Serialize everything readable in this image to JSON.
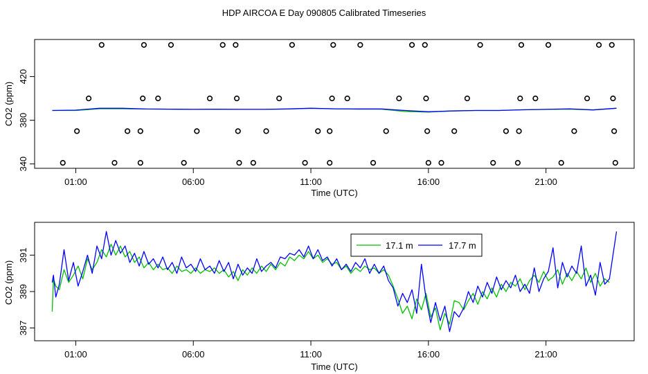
{
  "title": "HDP AIRCOA E  Day 090805  Calibrated Timeseries",
  "chart_data": [
    {
      "type": "scatter+line",
      "title": "",
      "xlabel": "Time (UTC)",
      "ylabel": "CO2 (ppm)",
      "xlim": [
        -0.75,
        24.75
      ],
      "ylim": [
        336,
        454
      ],
      "x_ticks": [
        {
          "v": 1,
          "label": "01:00"
        },
        {
          "v": 6,
          "label": "06:00"
        },
        {
          "v": 11,
          "label": "11:00"
        },
        {
          "v": 16,
          "label": "16:00"
        },
        {
          "v": 21,
          "label": "21:00"
        }
      ],
      "y_ticks": [
        {
          "v": 340,
          "label": "340"
        },
        {
          "v": 380,
          "label": "380"
        },
        {
          "v": 420,
          "label": "420"
        }
      ],
      "grid": false,
      "cal_points": [
        {
          "x": 0.45,
          "y": 341
        },
        {
          "x": 1.05,
          "y": 370
        },
        {
          "x": 1.55,
          "y": 400
        },
        {
          "x": 2.1,
          "y": 449
        },
        {
          "x": 2.65,
          "y": 341
        },
        {
          "x": 3.2,
          "y": 370
        },
        {
          "x": 3.75,
          "y": 341
        },
        {
          "x": 3.75,
          "y": 370
        },
        {
          "x": 3.85,
          "y": 400
        },
        {
          "x": 3.9,
          "y": 449
        },
        {
          "x": 4.5,
          "y": 400
        },
        {
          "x": 5.05,
          "y": 449
        },
        {
          "x": 5.6,
          "y": 341
        },
        {
          "x": 6.15,
          "y": 370
        },
        {
          "x": 6.7,
          "y": 400
        },
        {
          "x": 7.25,
          "y": 449
        },
        {
          "x": 7.8,
          "y": 449
        },
        {
          "x": 7.85,
          "y": 400
        },
        {
          "x": 7.9,
          "y": 370
        },
        {
          "x": 7.95,
          "y": 341
        },
        {
          "x": 8.55,
          "y": 341
        },
        {
          "x": 9.1,
          "y": 370
        },
        {
          "x": 9.65,
          "y": 400
        },
        {
          "x": 10.2,
          "y": 449
        },
        {
          "x": 10.75,
          "y": 341
        },
        {
          "x": 11.3,
          "y": 370
        },
        {
          "x": 11.8,
          "y": 370
        },
        {
          "x": 11.8,
          "y": 341
        },
        {
          "x": 11.9,
          "y": 400
        },
        {
          "x": 11.95,
          "y": 449
        },
        {
          "x": 12.55,
          "y": 400
        },
        {
          "x": 13.1,
          "y": 449
        },
        {
          "x": 13.65,
          "y": 341
        },
        {
          "x": 14.2,
          "y": 370
        },
        {
          "x": 14.75,
          "y": 400
        },
        {
          "x": 15.3,
          "y": 449
        },
        {
          "x": 15.85,
          "y": 449
        },
        {
          "x": 15.9,
          "y": 400
        },
        {
          "x": 15.95,
          "y": 370
        },
        {
          "x": 16.0,
          "y": 341
        },
        {
          "x": 16.55,
          "y": 341
        },
        {
          "x": 17.1,
          "y": 370
        },
        {
          "x": 17.65,
          "y": 400
        },
        {
          "x": 18.2,
          "y": 449
        },
        {
          "x": 18.75,
          "y": 341
        },
        {
          "x": 19.3,
          "y": 370
        },
        {
          "x": 19.8,
          "y": 341
        },
        {
          "x": 19.85,
          "y": 370
        },
        {
          "x": 19.9,
          "y": 400
        },
        {
          "x": 19.95,
          "y": 449
        },
        {
          "x": 20.55,
          "y": 400
        },
        {
          "x": 21.1,
          "y": 449
        },
        {
          "x": 21.65,
          "y": 341
        },
        {
          "x": 22.2,
          "y": 370
        },
        {
          "x": 22.75,
          "y": 400
        },
        {
          "x": 23.25,
          "y": 449
        },
        {
          "x": 23.8,
          "y": 449
        },
        {
          "x": 23.85,
          "y": 400
        },
        {
          "x": 23.9,
          "y": 370
        },
        {
          "x": 23.95,
          "y": 341
        }
      ],
      "series": [
        {
          "name": "17.1 m",
          "color": "#00c000",
          "x": [
            0,
            1,
            2,
            3,
            4,
            5,
            6,
            7,
            8,
            9,
            10,
            11,
            12,
            13,
            14,
            15,
            16,
            17,
            18,
            19,
            20,
            21,
            22,
            23,
            24
          ],
          "y": [
            389,
            389,
            390.5,
            390.5,
            390.3,
            390.2,
            390,
            390,
            390,
            390,
            390.3,
            391,
            390.5,
            390.2,
            390.2,
            388,
            387.5,
            388.5,
            389,
            389,
            389.6,
            389.9,
            390.2,
            389.5,
            391
          ]
        },
        {
          "name": "17.7 m",
          "color": "#0000ff",
          "x": [
            0,
            1,
            2,
            3,
            4,
            5,
            6,
            7,
            8,
            9,
            10,
            11,
            12,
            13,
            14,
            15,
            16,
            17,
            18,
            19,
            20,
            21,
            22,
            23,
            24
          ],
          "y": [
            389,
            389.3,
            391,
            391,
            390.3,
            390.2,
            390,
            390.1,
            390,
            390,
            390.4,
            391,
            390.5,
            390.4,
            390.4,
            389,
            387.8,
            388.5,
            389,
            389,
            389.6,
            390,
            390.5,
            389.5,
            391
          ]
        }
      ]
    },
    {
      "type": "line",
      "title": "",
      "xlabel": "Time (UTC)",
      "ylabel": "CO2 (ppm)",
      "xlim": [
        -0.75,
        24.75
      ],
      "ylim": [
        386.3,
        392.8
      ],
      "x_ticks": [
        {
          "v": 1,
          "label": "01:00"
        },
        {
          "v": 6,
          "label": "06:00"
        },
        {
          "v": 11,
          "label": "11:00"
        },
        {
          "v": 16,
          "label": "16:00"
        },
        {
          "v": 21,
          "label": "21:00"
        }
      ],
      "y_ticks": [
        {
          "v": 387,
          "label": "387"
        },
        {
          "v": 389,
          "label": "389"
        },
        {
          "v": 391,
          "label": "391"
        }
      ],
      "grid": false,
      "legend": "top-center",
      "series": [
        {
          "name": "17.1 m",
          "color": "#00c000",
          "x": [
            -0.001,
            0.05,
            0.15,
            0.3,
            0.5,
            0.7,
            0.9,
            1.1,
            1.3,
            1.5,
            1.7,
            1.9,
            2.1,
            2.3,
            2.5,
            2.7,
            2.9,
            3.1,
            3.3,
            3.5,
            3.7,
            3.9,
            4.1,
            4.3,
            4.5,
            4.7,
            4.9,
            5.1,
            5.3,
            5.5,
            5.7,
            5.9,
            6.1,
            6.3,
            6.5,
            6.7,
            6.9,
            7.1,
            7.3,
            7.5,
            7.7,
            7.9,
            8.1,
            8.3,
            8.5,
            8.7,
            8.9,
            9.1,
            9.3,
            9.5,
            9.7,
            9.9,
            10.1,
            10.3,
            10.5,
            10.7,
            10.9,
            11.1,
            11.3,
            11.5,
            11.7,
            11.9,
            12.1,
            12.3,
            12.5,
            12.7,
            12.9,
            13.1,
            13.3,
            13.5,
            13.7,
            13.9,
            14.1,
            14.3,
            14.5,
            14.7,
            14.9,
            15.1,
            15.3,
            15.5,
            15.7,
            15.9,
            16.1,
            16.3,
            16.5,
            16.7,
            16.9,
            17.1,
            17.3,
            17.5,
            17.7,
            17.9,
            18.1,
            18.3,
            18.5,
            18.7,
            18.9,
            19.1,
            19.3,
            19.5,
            19.7,
            19.9,
            20.1,
            20.3,
            20.5,
            20.7,
            20.9,
            21.1,
            21.3,
            21.5,
            21.7,
            21.9,
            22.1,
            22.3,
            22.5,
            22.7,
            22.9,
            23.1,
            23.3,
            23.5,
            23.7
          ],
          "y": [
            387.9,
            389.7,
            389.3,
            389.1,
            390.2,
            389.5,
            389.9,
            390.4,
            389.7,
            390.8,
            390.2,
            390.6,
            391.3,
            390.9,
            391.6,
            391.0,
            391.5,
            390.9,
            391.2,
            390.6,
            390.9,
            390.3,
            390.6,
            390.2,
            390.5,
            390.2,
            390.3,
            390.0,
            390.4,
            390.1,
            390.2,
            390.0,
            390.3,
            390.0,
            390.2,
            390.1,
            390.3,
            390.0,
            390.2,
            389.8,
            390.1,
            389.6,
            390.2,
            389.9,
            390.3,
            390.0,
            390.4,
            390.1,
            390.5,
            390.2,
            390.6,
            390.4,
            390.9,
            390.7,
            391.0,
            390.8,
            391.2,
            390.8,
            391.0,
            390.6,
            390.8,
            390.5,
            390.6,
            390.2,
            390.4,
            390.0,
            390.3,
            390.1,
            390.4,
            390.2,
            390.3,
            390.0,
            390.2,
            389.9,
            389.3,
            388.6,
            387.8,
            388.2,
            387.5,
            388.6,
            388.0,
            388.9,
            387.6,
            388.1,
            386.9,
            387.8,
            387.2,
            388.5,
            388.4,
            388.0,
            388.5,
            388.9,
            388.3,
            389.0,
            388.6,
            389.2,
            388.7,
            389.4,
            389.0,
            389.5,
            389.3,
            389.7,
            389.1,
            389.6,
            389.9,
            389.5,
            390.1,
            389.6,
            389.8,
            390.2,
            389.4,
            390.0,
            389.6,
            390.1,
            389.7,
            390.3,
            389.5,
            390.0,
            389.3,
            389.7,
            389.5
          ],
          "markers": false
        },
        {
          "name": "17.7 m",
          "color": "#0000ff",
          "x": [
            -0.001,
            0.05,
            0.15,
            0.3,
            0.5,
            0.7,
            0.9,
            1.1,
            1.3,
            1.5,
            1.7,
            1.9,
            2.1,
            2.3,
            2.5,
            2.7,
            2.9,
            3.1,
            3.3,
            3.5,
            3.7,
            3.9,
            4.1,
            4.3,
            4.5,
            4.7,
            4.9,
            5.1,
            5.3,
            5.5,
            5.7,
            5.9,
            6.1,
            6.3,
            6.5,
            6.7,
            6.9,
            7.1,
            7.3,
            7.5,
            7.7,
            7.9,
            8.1,
            8.3,
            8.5,
            8.7,
            8.9,
            9.1,
            9.3,
            9.5,
            9.7,
            9.9,
            10.1,
            10.3,
            10.5,
            10.7,
            10.9,
            11.1,
            11.3,
            11.5,
            11.7,
            11.9,
            12.1,
            12.3,
            12.5,
            12.7,
            12.9,
            13.1,
            13.3,
            13.5,
            13.7,
            13.9,
            14.1,
            14.3,
            14.5,
            14.7,
            14.9,
            15.1,
            15.3,
            15.5,
            15.7,
            15.9,
            16.1,
            16.3,
            16.5,
            16.7,
            16.9,
            17.1,
            17.3,
            17.5,
            17.7,
            17.9,
            18.1,
            18.3,
            18.5,
            18.7,
            18.9,
            19.1,
            19.3,
            19.5,
            19.7,
            19.9,
            20.1,
            20.3,
            20.5,
            20.7,
            20.9,
            21.1,
            21.3,
            21.5,
            21.7,
            21.9,
            22.1,
            22.3,
            22.5,
            22.7,
            22.9,
            23.1,
            23.3,
            23.5,
            23.7,
            24.0
          ],
          "y": [
            389.5,
            389.9,
            388.7,
            389.4,
            391.3,
            389.6,
            390.6,
            389.3,
            390.1,
            391.0,
            390.0,
            391.5,
            390.8,
            392.3,
            391.0,
            391.8,
            391.1,
            391.5,
            390.6,
            391.1,
            390.4,
            391.2,
            390.5,
            390.8,
            390.3,
            390.9,
            390.2,
            390.6,
            390.0,
            390.9,
            390.3,
            390.5,
            390.1,
            390.8,
            390.2,
            390.4,
            390.0,
            390.7,
            390.1,
            390.6,
            389.7,
            390.5,
            389.9,
            390.3,
            390.0,
            390.8,
            390.1,
            390.4,
            390.6,
            390.3,
            390.9,
            390.8,
            391.1,
            391.0,
            391.3,
            390.9,
            391.5,
            390.8,
            391.3,
            390.7,
            390.9,
            390.4,
            390.8,
            390.2,
            390.5,
            390.1,
            390.6,
            390.3,
            390.8,
            390.0,
            390.5,
            390.0,
            390.4,
            389.6,
            389.2,
            388.2,
            388.9,
            388.4,
            389.1,
            387.8,
            390.5,
            388.6,
            387.3,
            388.4,
            387.4,
            388.2,
            386.8,
            387.9,
            387.6,
            388.1,
            389.0,
            388.4,
            389.3,
            388.7,
            389.5,
            388.9,
            389.8,
            389.1,
            389.6,
            389.2,
            389.9,
            389.0,
            389.4,
            388.9,
            390.3,
            389.0,
            389.7,
            390.1,
            391.4,
            389.2,
            390.6,
            389.8,
            390.4,
            390.0,
            391.5,
            389.3,
            389.9,
            388.8,
            390.6,
            389.4,
            389.7,
            392.3
          ]
        }
      ]
    }
  ]
}
